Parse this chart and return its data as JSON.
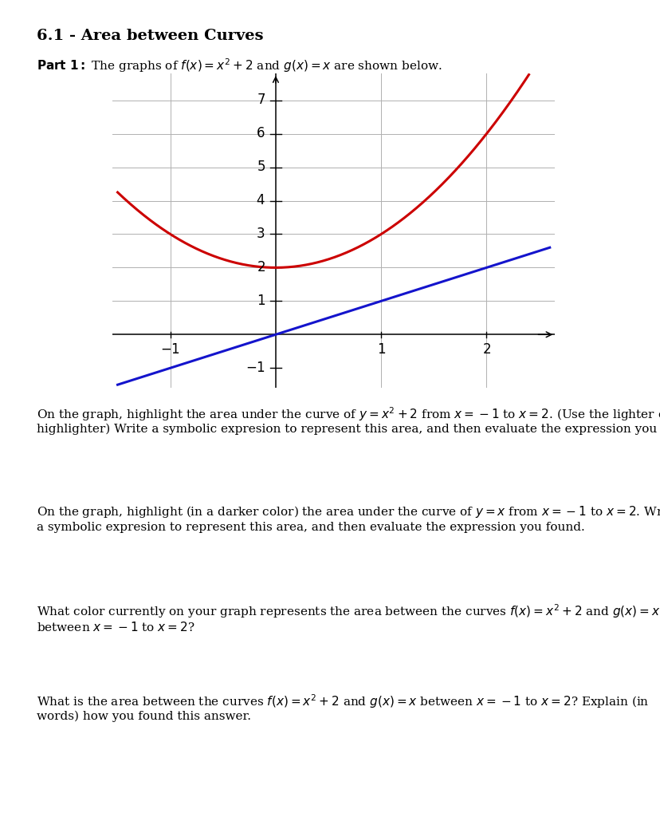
{
  "title": "6.1 - Area between Curves",
  "curve_f_color": "#cc0000",
  "curve_g_color": "#1414cc",
  "curve_f_linewidth": 2.2,
  "curve_g_linewidth": 2.2,
  "xlim": [
    -1.55,
    2.65
  ],
  "ylim": [
    -1.6,
    7.8
  ],
  "x_ticks": [
    -1,
    1,
    2
  ],
  "y_ticks": [
    1,
    2,
    3,
    4,
    5,
    6,
    7
  ],
  "graph_bg": "#ffffff",
  "fig_bg": "#ffffff",
  "title_fontsize": 14,
  "text_fontsize": 11.0
}
